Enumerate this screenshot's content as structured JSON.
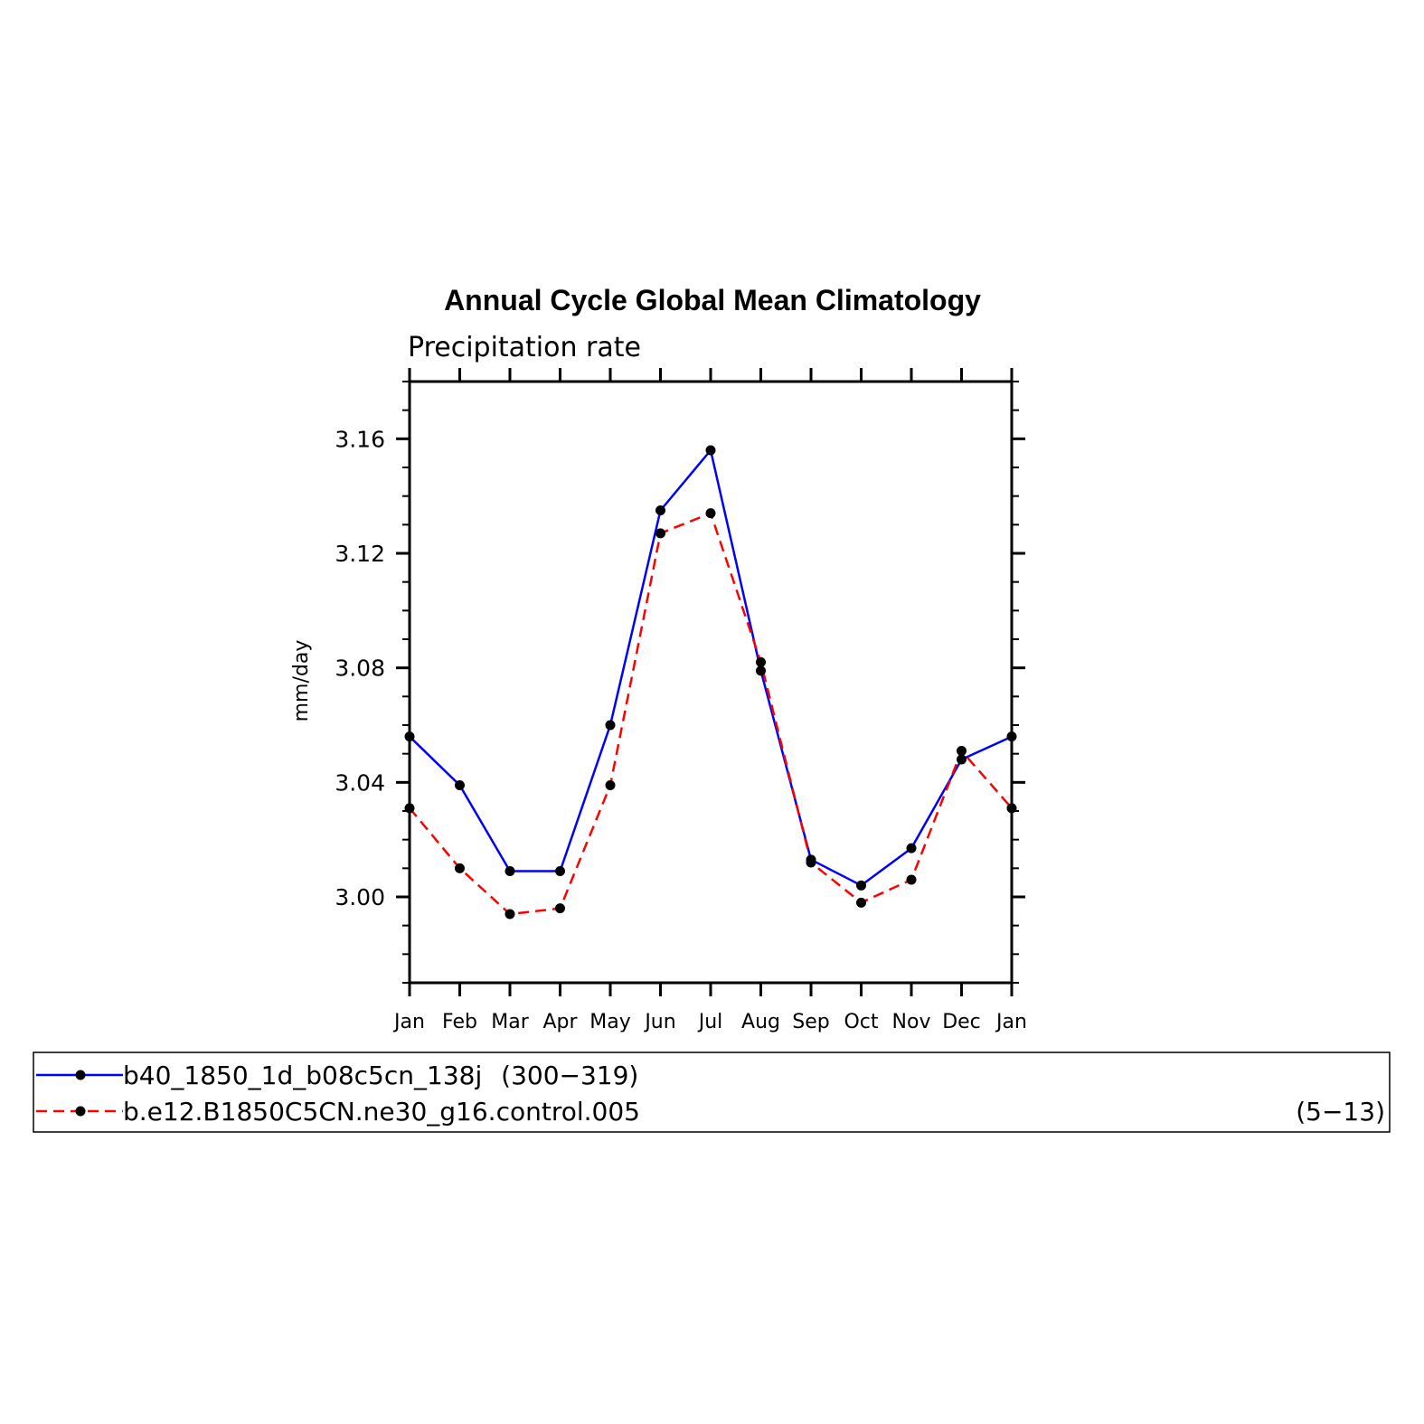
{
  "chart_data": {
    "type": "line",
    "title": "Annual Cycle Global Mean Climatology",
    "subtitle": "Precipitation rate",
    "ylabel": "mm/day",
    "xlabel": "",
    "categories": [
      "Jan",
      "Feb",
      "Mar",
      "Apr",
      "May",
      "Jun",
      "Jul",
      "Aug",
      "Sep",
      "Oct",
      "Nov",
      "Dec",
      "Jan"
    ],
    "ylim": [
      2.97,
      3.18
    ],
    "yticks": [
      "3.00",
      "3.04",
      "3.08",
      "3.12",
      "3.16"
    ],
    "grid": false,
    "legend_position": "bottom",
    "series": [
      {
        "name": "b40_1850_1d_b08c5cn_138j",
        "range": "(300−319)",
        "color": "#0000ff",
        "dash": "solid",
        "values": [
          3.056,
          3.039,
          3.009,
          3.009,
          3.06,
          3.135,
          3.156,
          3.079,
          3.013,
          3.004,
          3.017,
          3.048,
          3.056
        ]
      },
      {
        "name": "b.e12.B1850C5CN.ne30_g16.control.005",
        "range": "(5−13)",
        "color": "#ff0000",
        "dash": "dashed",
        "values": [
          3.031,
          3.01,
          2.994,
          2.996,
          3.039,
          3.127,
          3.134,
          3.082,
          3.012,
          2.998,
          3.006,
          3.051,
          3.031
        ]
      }
    ]
  }
}
